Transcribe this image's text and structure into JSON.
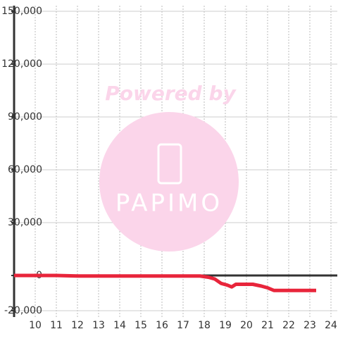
{
  "chart_data": {
    "type": "line",
    "watermark": {
      "line1": "Powered by",
      "line2": "PAPIMO"
    },
    "x": [
      9,
      10,
      11,
      12,
      13,
      14,
      15,
      16,
      17,
      17.8,
      18.2,
      18.5,
      18.8,
      19.1,
      19.3,
      19.5,
      20,
      20.3,
      20.7,
      21,
      21.3,
      22,
      23,
      23.3
    ],
    "series": [
      {
        "color": "#e8253b",
        "values": [
          0,
          0,
          0,
          -300,
          -300,
          -300,
          -300,
          -300,
          -300,
          -300,
          -1000,
          -2000,
          -4500,
          -5500,
          -6500,
          -5000,
          -5000,
          -5000,
          -6000,
          -7000,
          -8500,
          -8500,
          -8500,
          -8500
        ]
      }
    ],
    "xlim": [
      9,
      24.3
    ],
    "xticks": [
      10,
      11,
      12,
      13,
      14,
      15,
      16,
      17,
      18,
      19,
      20,
      21,
      22,
      23,
      24
    ],
    "ylim": [
      -20000,
      150000
    ],
    "yticks": [
      {
        "value": -20000,
        "label": "-20,000"
      },
      0,
      {
        "value": 30000,
        "label": "30,000"
      },
      {
        "value": 60000,
        "label": "60,000"
      },
      {
        "value": 90000,
        "label": "90,000"
      },
      {
        "value": 120000,
        "label": "120,000"
      },
      {
        "value": 150000,
        "label": "150,000"
      }
    ],
    "grid": true
  }
}
